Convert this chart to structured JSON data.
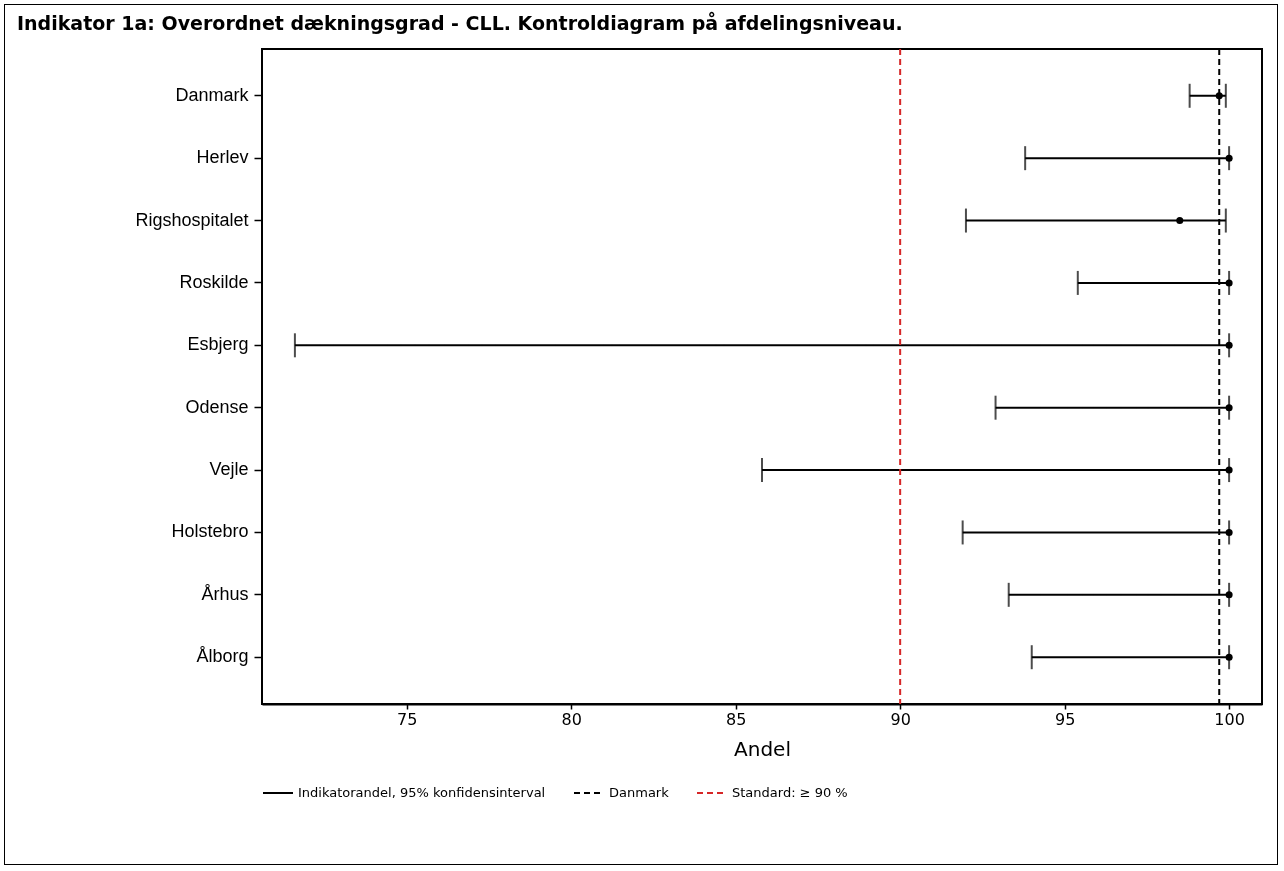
{
  "chart_data": {
    "type": "scatter",
    "orientation": "horizontal",
    "title": "Indikator 1a: Overordnet dækningsgrad - CLL. Kontroldiagram på afdelingsniveau.",
    "xlabel": "Andel",
    "categories": [
      "Danmark",
      "Herlev",
      "Rigshospitalet",
      "Roskilde",
      "Esbjerg",
      "Odense",
      "Vejle",
      "Holstebro",
      "Århus",
      "Ålborg"
    ],
    "series": [
      {
        "name": "Indikatorandel, 95% konfidensinterval",
        "color": "#000000",
        "values": [
          99.7,
          100,
          98.5,
          100,
          100,
          100,
          100,
          100,
          100,
          100
        ],
        "errors": [
          [
            98.8,
            99.9
          ],
          [
            93.8,
            100
          ],
          [
            92.0,
            99.9
          ],
          [
            95.4,
            100
          ],
          [
            71.6,
            100
          ],
          [
            92.9,
            100
          ],
          [
            85.8,
            100
          ],
          [
            91.9,
            100
          ],
          [
            93.3,
            100
          ],
          [
            94.0,
            100
          ]
        ]
      }
    ],
    "marker": "circle",
    "xlim": [
      70.6,
      101
    ],
    "xticks": [
      75,
      80,
      85,
      90,
      95,
      100
    ],
    "grid": false,
    "legend": "bottom",
    "ref_lines": [
      {
        "axis": "x",
        "value": 99.7,
        "label": "Danmark",
        "color": "#000000",
        "line_style": "dashed"
      },
      {
        "axis": "x",
        "value": 90,
        "label": "Standard: ≥ 90 %",
        "color": "#d62728",
        "line_style": "dashed"
      }
    ]
  }
}
